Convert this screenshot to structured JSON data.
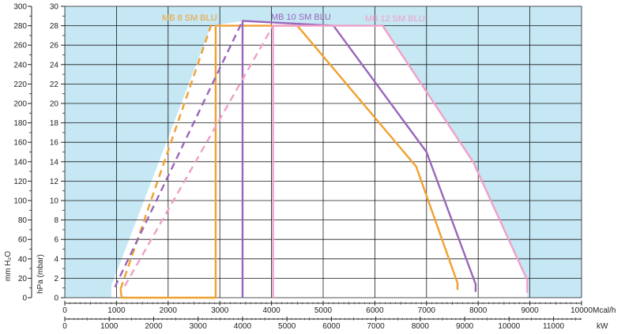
{
  "chart_data": {
    "type": "line",
    "x_primary": {
      "unit": "Mcal/h",
      "range": [
        0,
        10000
      ],
      "ticks": [
        "0",
        "1000",
        "2000",
        "3000",
        "4000",
        "5000",
        "6000",
        "7000",
        "8000",
        "9000",
        "10000"
      ]
    },
    "x_secondary": {
      "unit": "kW",
      "range": [
        0,
        11630
      ],
      "ticks": [
        "0",
        "1000",
        "2000",
        "3000",
        "4000",
        "5000",
        "6000",
        "7000",
        "8000",
        "9000",
        "10000",
        "11000"
      ]
    },
    "y_mmh2o": {
      "label": "mm H₂O",
      "range": [
        0,
        300
      ],
      "ticks": [
        "0",
        "20",
        "40",
        "60",
        "80",
        "100",
        "120",
        "140",
        "160",
        "180",
        "200",
        "220",
        "240",
        "260",
        "280",
        "300"
      ]
    },
    "y_hpa": {
      "label": "hPa (mbar)",
      "range": [
        0,
        30
      ],
      "ticks": [
        "0",
        "2",
        "4",
        "6",
        "8",
        "10",
        "12",
        "14",
        "16",
        "18",
        "20",
        "22",
        "24",
        "26",
        "28",
        "30"
      ]
    },
    "grid": true,
    "series": [
      {
        "name": "MB 8 SM BLU",
        "color": "#f0a030",
        "solid": [
          [
            1080,
            0.9
          ],
          [
            1100,
            0
          ],
          [
            2920,
            0
          ],
          [
            2920,
            28
          ],
          [
            4500,
            28
          ],
          [
            6800,
            13.5
          ],
          [
            7600,
            1.5
          ],
          [
            7600,
            0.8
          ]
        ],
        "dashed": [
          [
            1080,
            0.9
          ],
          [
            2830,
            28
          ],
          [
            2920,
            28
          ]
        ]
      },
      {
        "name": "MB 10 SM BLU",
        "color": "#9966bb",
        "solid": [
          [
            3440,
            0
          ],
          [
            3440,
            28.5
          ],
          [
            5200,
            28
          ],
          [
            7000,
            15
          ],
          [
            7950,
            1.4
          ],
          [
            7950,
            0.6
          ]
        ],
        "dashed": [
          [
            970,
            1.1
          ],
          [
            3440,
            28.5
          ]
        ]
      },
      {
        "name": "MB 12 SM BLU",
        "color": "#f0a0c8",
        "solid": [
          [
            4030,
            0
          ],
          [
            4030,
            28
          ],
          [
            6150,
            28
          ],
          [
            7900,
            14
          ],
          [
            8950,
            1.8
          ],
          [
            8950,
            0.5
          ]
        ],
        "dashed": [
          [
            1160,
            1.2
          ],
          [
            4030,
            28
          ]
        ]
      }
    ]
  }
}
